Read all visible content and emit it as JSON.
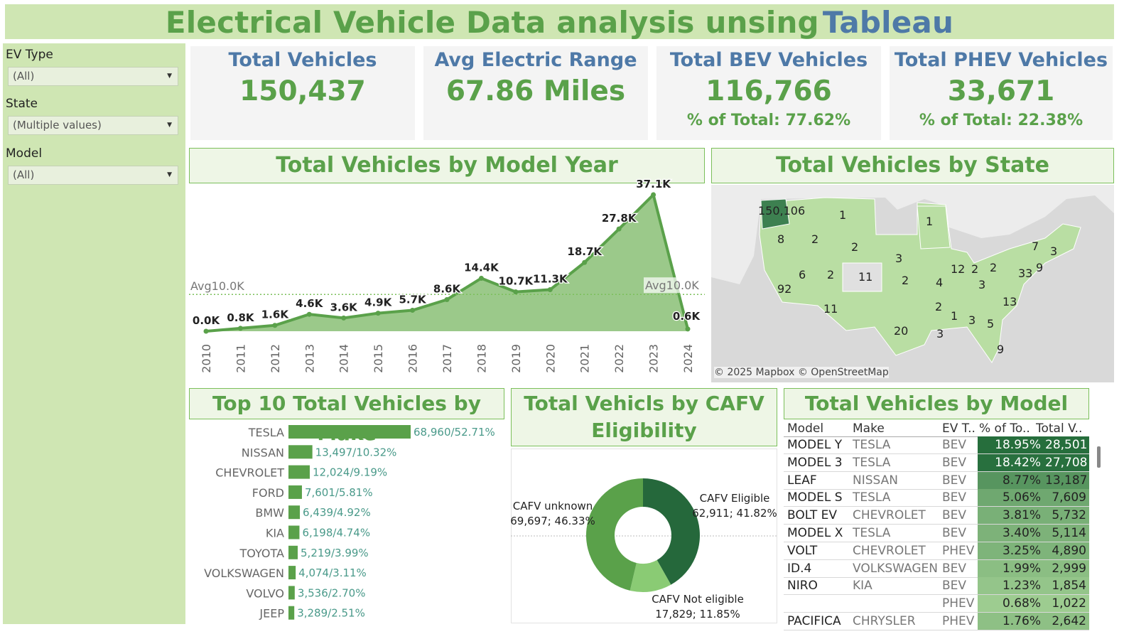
{
  "title": {
    "main": "Electrical Vehicle Data analysis unsing",
    "brand": "Tableau"
  },
  "filters": [
    {
      "label": "EV Type",
      "value": "(All)"
    },
    {
      "label": "State",
      "value": "(Multiple values)"
    },
    {
      "label": "Model",
      "value": "(All)"
    }
  ],
  "kpis": [
    {
      "label": "Total Vehicles",
      "value": "150,437",
      "sub": ""
    },
    {
      "label": "Avg Electric Range",
      "value": "67.86 Miles",
      "sub": ""
    },
    {
      "label": "Total BEV Vehicles",
      "value": "116,766",
      "sub": "% of Total: 77.62%"
    },
    {
      "label": "Total PHEV Vehicles",
      "value": "33,671",
      "sub": "% of Total: 22.38%"
    }
  ],
  "headers": {
    "year": "Total Vehicles by Model Year",
    "state": "Total Vehicles by State",
    "make": "Top 10 Total Vehicles by Make",
    "cafv_line1": "Total Vehicls by CAFV",
    "cafv_line2": "Eligibility",
    "model": "Total Vehicles by Model"
  },
  "map": {
    "attribution": "© 2025 Mapbox © OpenStreetMap",
    "labels": [
      "150,106",
      "1",
      "8",
      "2",
      "1",
      "2",
      "3",
      "6",
      "2",
      "11",
      "2",
      "4",
      "12",
      "2",
      "2",
      "7",
      "3",
      "33",
      "9",
      "92",
      "3",
      "13",
      "2",
      "1",
      "3",
      "5",
      "11",
      "20",
      "3",
      "9"
    ]
  },
  "chart_data": [
    {
      "type": "area",
      "x": [
        "2010",
        "2011",
        "2012",
        "2013",
        "2014",
        "2015",
        "2016",
        "2017",
        "2018",
        "2019",
        "2020",
        "2021",
        "2022",
        "2023",
        "2024"
      ],
      "values": [
        0.0,
        0.8,
        1.6,
        4.6,
        3.6,
        4.9,
        5.7,
        8.6,
        14.4,
        10.7,
        11.3,
        18.7,
        27.8,
        37.1,
        0.6
      ],
      "data_labels": [
        "0.0K",
        "0.8K",
        "1.6K",
        "4.6K",
        "3.6K",
        "4.9K",
        "5.7K",
        "8.6K",
        "14.4K",
        "10.7K",
        "11.3K",
        "18.7K",
        "27.8K",
        "37.1K",
        "0.6K"
      ],
      "unit": "K",
      "reference_line": {
        "value": 10.0,
        "label": "Avg10.0K"
      },
      "colors": {
        "fill": "#9bc98a",
        "line": "#5aa14a",
        "ref": "#7bbf5a"
      }
    },
    {
      "type": "bar",
      "orientation": "horizontal",
      "categories": [
        "TESLA",
        "NISSAN",
        "CHEVROLET",
        "FORD",
        "BMW",
        "KIA",
        "TOYOTA",
        "VOLKSWAGEN",
        "VOLVO",
        "JEEP"
      ],
      "values": [
        68960,
        13497,
        12024,
        7601,
        6439,
        6198,
        5219,
        4074,
        3536,
        3289
      ],
      "labels": [
        "68,960/52.71%",
        "13,497/10.32%",
        "12,024/9.19%",
        "7,601/5.81%",
        "6,439/4.92%",
        "6,198/4.74%",
        "5,219/3.99%",
        "4,074/3.11%",
        "3,536/2.70%",
        "3,289/2.51%"
      ],
      "colors": {
        "bar": "#5aa14a",
        "label": "#4a9a8a"
      }
    },
    {
      "type": "pie",
      "donut": true,
      "categories": [
        "CAFV Eligible",
        "CAFV Not eligible",
        "CAFV unknown"
      ],
      "values": [
        62911,
        17829,
        69697
      ],
      "percents": [
        41.82,
        11.85,
        46.33
      ],
      "labels": [
        "62,911; 41.82%",
        "17,829; 11.85%",
        "69,697; 46.33%"
      ],
      "colors": [
        "#25683b",
        "#8acb74",
        "#5aa14a"
      ]
    },
    {
      "type": "table",
      "columns": [
        "Model",
        "Make",
        "EV T..",
        "% of To..",
        "Total V.."
      ],
      "rows": [
        {
          "model": "MODEL Y",
          "make": "TESLA",
          "type": "BEV",
          "pct": "18.95%",
          "total": "28,501",
          "value": 28501
        },
        {
          "model": "MODEL 3",
          "make": "TESLA",
          "type": "BEV",
          "pct": "18.42%",
          "total": "27,708",
          "value": 27708
        },
        {
          "model": "LEAF",
          "make": "NISSAN",
          "type": "BEV",
          "pct": "8.77%",
          "total": "13,187",
          "value": 13187
        },
        {
          "model": "MODEL S",
          "make": "TESLA",
          "type": "BEV",
          "pct": "5.06%",
          "total": "7,609",
          "value": 7609
        },
        {
          "model": "BOLT EV",
          "make": "CHEVROLET",
          "type": "BEV",
          "pct": "3.81%",
          "total": "5,732",
          "value": 5732
        },
        {
          "model": "MODEL X",
          "make": "TESLA",
          "type": "BEV",
          "pct": "3.40%",
          "total": "5,114",
          "value": 5114
        },
        {
          "model": "VOLT",
          "make": "CHEVROLET",
          "type": "PHEV",
          "pct": "3.25%",
          "total": "4,890",
          "value": 4890
        },
        {
          "model": "ID.4",
          "make": "VOLKSWAGEN",
          "type": "BEV",
          "pct": "1.99%",
          "total": "2,999",
          "value": 2999
        },
        {
          "model": "NIRO",
          "make": "KIA",
          "type": "BEV",
          "pct": "1.23%",
          "total": "1,854",
          "value": 1854
        },
        {
          "model": "",
          "make": "",
          "type": "PHEV",
          "pct": "0.68%",
          "total": "1,022",
          "value": 1022
        },
        {
          "model": "PACIFICA",
          "make": "CHRYSLER",
          "type": "PHEV",
          "pct": "1.76%",
          "total": "2,642",
          "value": 2642
        }
      ]
    }
  ]
}
